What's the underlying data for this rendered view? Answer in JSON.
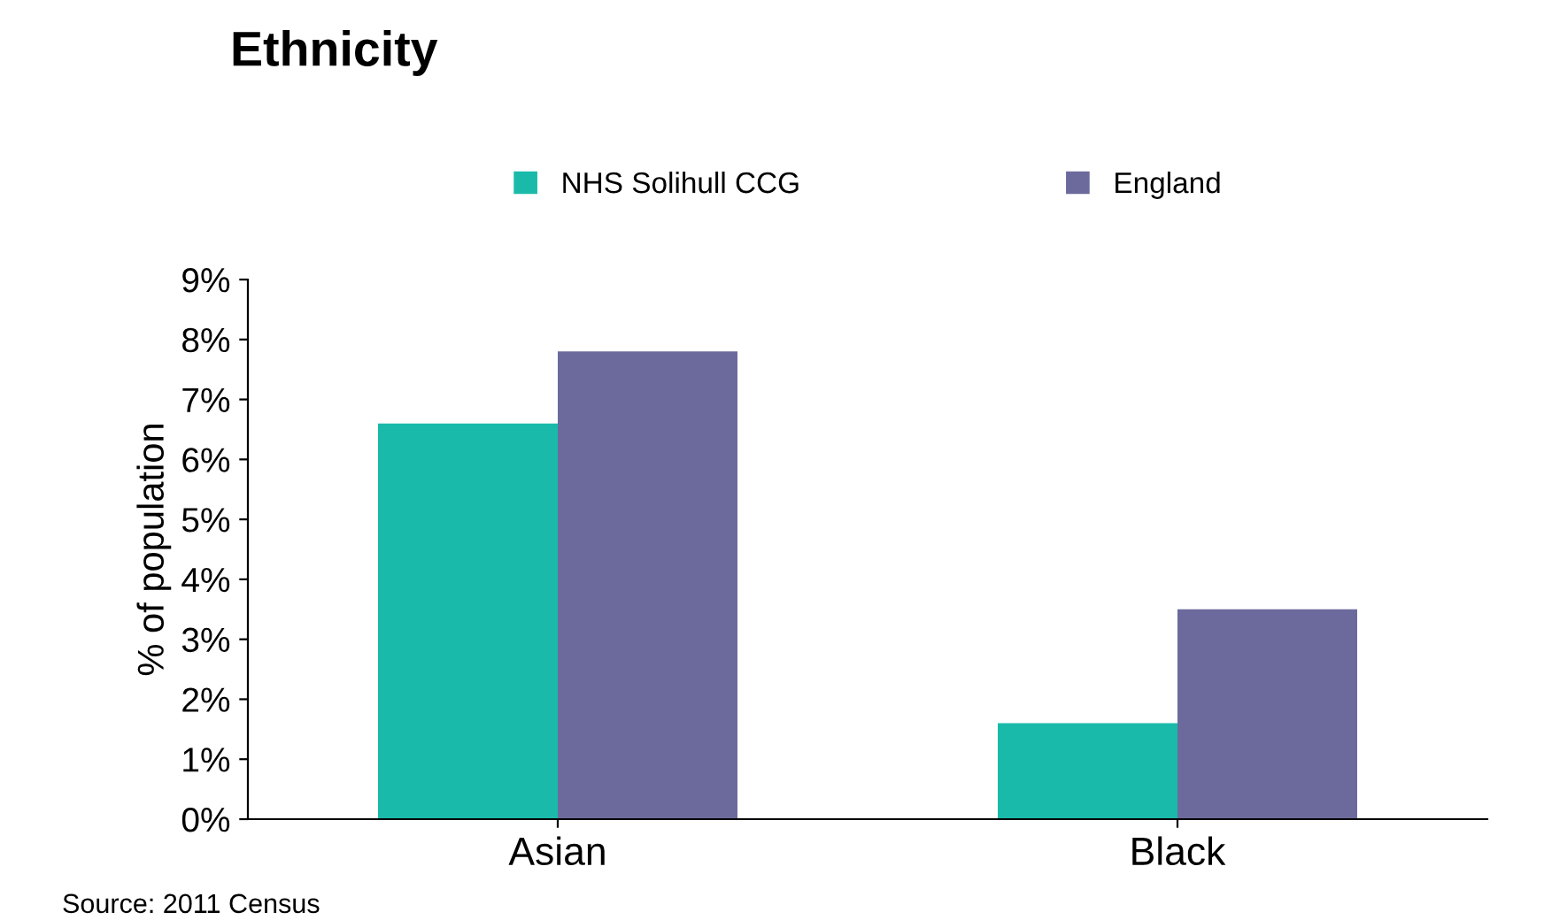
{
  "chart_data": {
    "type": "bar",
    "title": "Ethnicity",
    "ylabel": "% of population",
    "categories": [
      "Asian",
      "Black"
    ],
    "series": [
      {
        "name": "NHS Solihull CCG",
        "color": "#1abaaa",
        "values": [
          6.6,
          1.6
        ]
      },
      {
        "name": "England",
        "color": "#6c6a9c",
        "values": [
          7.8,
          3.5
        ]
      }
    ],
    "ylim": [
      0,
      9
    ],
    "yticks": [
      {
        "value": 0,
        "label": "0%"
      },
      {
        "value": 1,
        "label": "1%"
      },
      {
        "value": 2,
        "label": "2%"
      },
      {
        "value": 3,
        "label": "3%"
      },
      {
        "value": 4,
        "label": "4%"
      },
      {
        "value": 5,
        "label": "5%"
      },
      {
        "value": 6,
        "label": "6%"
      },
      {
        "value": 7,
        "label": "7%"
      },
      {
        "value": 8,
        "label": "8%"
      },
      {
        "value": 9,
        "label": "9%"
      }
    ],
    "grid": false,
    "legend": "top",
    "annotations": [
      "Source: 2011 Census"
    ]
  }
}
